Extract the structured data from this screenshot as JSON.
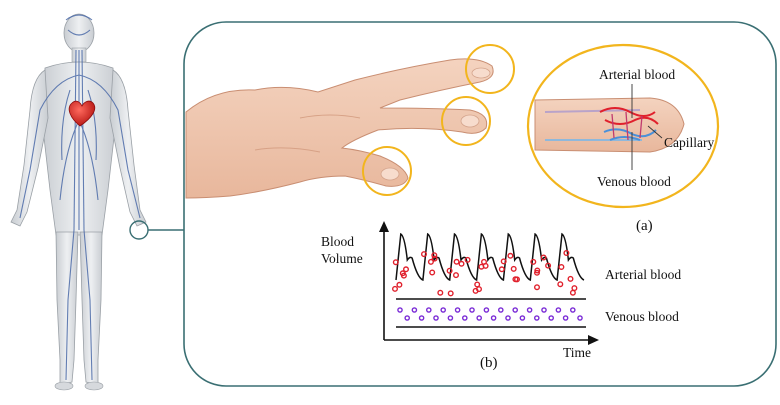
{
  "panel_a": {
    "label": "(a)",
    "arterial_label": "Arterial blood",
    "capillary_label": "Capillary",
    "venous_label": "Venous blood"
  },
  "panel_b": {
    "label": "(b)",
    "y_axis_label_line1": "Blood",
    "y_axis_label_line2": "Volume",
    "x_axis_label": "Time",
    "arterial_band_label": "Arterial blood",
    "venous_band_label": "Venous blood"
  },
  "colors": {
    "frame_stroke": "#3a6f73",
    "highlight_circle": "#f2b51d",
    "arterial_dot": "#e0202c",
    "venous_dot": "#7a2bd6",
    "heart": "#d21f1f",
    "vessels": "#4b6aa8",
    "skin": "#f1c9b1"
  }
}
